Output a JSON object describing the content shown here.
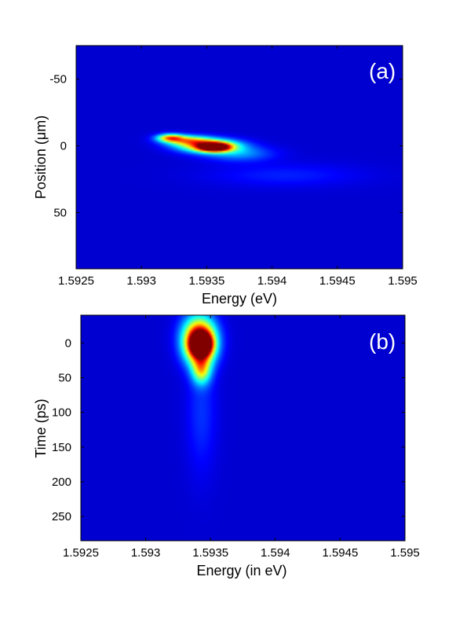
{
  "colors": {
    "background": "#00008f",
    "colormap": "jet"
  },
  "chart_data": [
    {
      "type": "heatmap",
      "panel_label": "(a)",
      "xlabel": "Energy (eV)",
      "ylabel": "Position (μm)",
      "xlim": [
        1.5925,
        1.595
      ],
      "ylim": [
        -75,
        92
      ],
      "y_inverted": true,
      "xticks": [
        1.5925,
        1.593,
        1.5935,
        1.594,
        1.5945,
        1.595
      ],
      "xtick_labels": [
        "1.5925",
        "1.593",
        "1.5935",
        "1.594",
        "1.5945",
        "1.595"
      ],
      "yticks": [
        -50,
        0,
        50
      ],
      "ytick_labels": [
        "-50",
        "0",
        "50"
      ],
      "features": [
        {
          "x": 1.59356,
          "y": 1,
          "intensity": 1.0,
          "sx": 8e-05,
          "sy": 2.2
        },
        {
          "x": 1.59352,
          "y": 0,
          "intensity": 0.72,
          "sx": 0.00016,
          "sy": 3.5
        },
        {
          "x": 1.59322,
          "y": -6,
          "intensity": 0.6,
          "sx": 7e-05,
          "sy": 2.0
        },
        {
          "x": 1.59335,
          "y": -4,
          "intensity": 0.5,
          "sx": 0.00012,
          "sy": 2.6
        },
        {
          "x": 1.59375,
          "y": 6,
          "intensity": 0.2,
          "sx": 0.00018,
          "sy": 4.0
        },
        {
          "x": 1.5941,
          "y": 22,
          "intensity": 0.08,
          "sx": 0.0004,
          "sy": 6.0
        }
      ]
    },
    {
      "type": "heatmap",
      "panel_label": "(b)",
      "xlabel": "Energy (in eV)",
      "ylabel": "Time (ps)",
      "xlim": [
        1.5925,
        1.595
      ],
      "ylim": [
        -40,
        285
      ],
      "y_inverted": true,
      "xticks": [
        1.5925,
        1.593,
        1.5935,
        1.594,
        1.5945,
        1.595
      ],
      "xtick_labels": [
        "1.5925",
        "1.593",
        "1.5935",
        "1.594",
        "1.5945",
        "1.595"
      ],
      "yticks": [
        0,
        50,
        100,
        150,
        200,
        250
      ],
      "ytick_labels": [
        "0",
        "50",
        "100",
        "150",
        "200",
        "250"
      ],
      "features": [
        {
          "x": 1.59343,
          "y": 2,
          "intensity": 1.0,
          "sx": 5e-05,
          "sy": 10
        },
        {
          "x": 1.59342,
          "y": 4,
          "intensity": 0.75,
          "sx": 8e-05,
          "sy": 20
        },
        {
          "x": 1.59341,
          "y": -10,
          "intensity": 0.55,
          "sx": 9e-05,
          "sy": 22
        },
        {
          "x": 1.59343,
          "y": 40,
          "intensity": 0.45,
          "sx": 5e-05,
          "sy": 14
        },
        {
          "x": 1.59343,
          "y": 100,
          "intensity": 0.1,
          "sx": 8e-05,
          "sy": 60
        }
      ]
    }
  ]
}
